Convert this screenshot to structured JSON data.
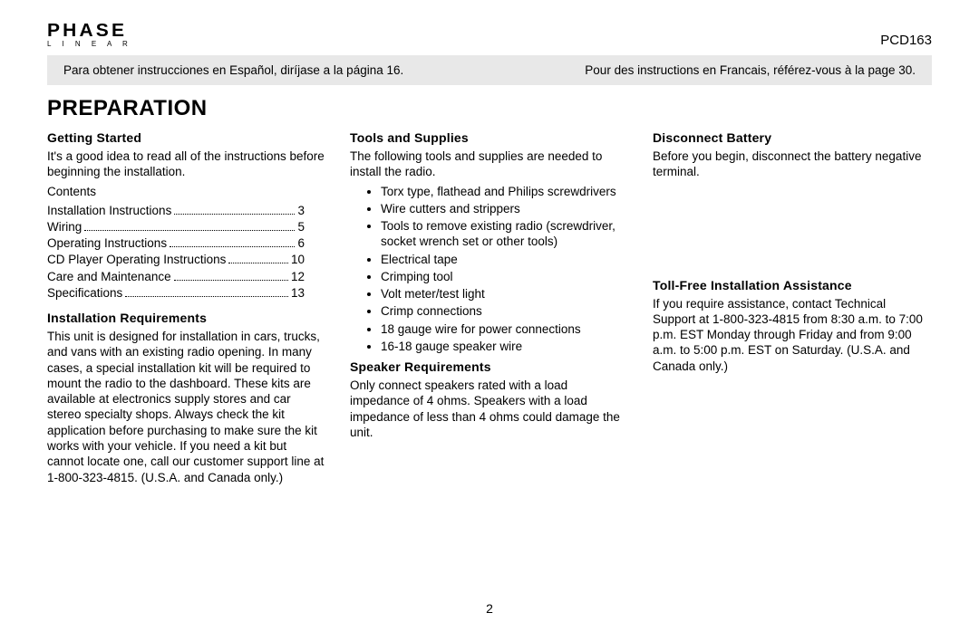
{
  "header": {
    "logo_main": "PHASE",
    "logo_sub": "L I N E A R",
    "model": "PCD163"
  },
  "lang_bar": {
    "es": "Para obtener instrucciones en Español, diríjase a la página 16.",
    "fr": "Pour des instructions en Francais, référez-vous à la page 30."
  },
  "title": "PREPARATION",
  "col1": {
    "getting_started": {
      "heading": "Getting Started",
      "intro": "It's a good idea to read all of the instructions before beginning the installation.",
      "contents_label": "Contents",
      "toc": [
        {
          "label": "Installation Instructions",
          "page": "3"
        },
        {
          "label": "Wiring",
          "page": "5"
        },
        {
          "label": "Operating Instructions",
          "page": "6"
        },
        {
          "label": "CD Player Operating Instructions",
          "page": "10"
        },
        {
          "label": "Care and Maintenance",
          "page": "12"
        },
        {
          "label": "Specifications",
          "page": "13"
        }
      ]
    },
    "install_req": {
      "heading": "Installation Requirements",
      "body": "This unit is designed for installation in cars, trucks, and vans with an existing radio opening. In many cases, a special installation kit will be required to mount the radio to the dashboard. These kits are available at electronics supply stores and car stereo specialty shops. Always check the kit application before purchasing to make sure the kit works with your vehicle. If you need a kit but cannot locate one, call our customer support line at 1-800-323-4815. (U.S.A. and Canada only.)"
    }
  },
  "col2": {
    "tools": {
      "heading": "Tools and Supplies",
      "intro": "The following tools and supplies are needed to install the radio.",
      "items": [
        "Torx type, flathead and Philips screwdrivers",
        "Wire cutters and strippers",
        "Tools to remove existing radio (screwdriver, socket wrench set or other tools)",
        "Electrical tape",
        "Crimping tool",
        "Volt meter/test light",
        "Crimp connections",
        "18 gauge wire for power connections",
        "16-18 gauge speaker wire"
      ]
    },
    "speaker": {
      "heading": "Speaker Requirements",
      "body": "Only connect speakers rated with a load impedance of 4 ohms. Speakers with a load impedance of less than 4 ohms could damage the unit."
    }
  },
  "col3": {
    "battery": {
      "heading": "Disconnect Battery",
      "body": "Before you begin, disconnect the battery negative terminal."
    },
    "assist": {
      "heading": "Toll-Free Installation Assistance",
      "body": "If you require assistance, contact Technical Support at 1-800-323-4815 from 8:30 a.m. to 7:00 p.m. EST Monday through Friday and from 9:00 a.m. to 5:00 p.m. EST on Saturday. (U.S.A. and Canada only.)"
    }
  },
  "page_number": "2"
}
